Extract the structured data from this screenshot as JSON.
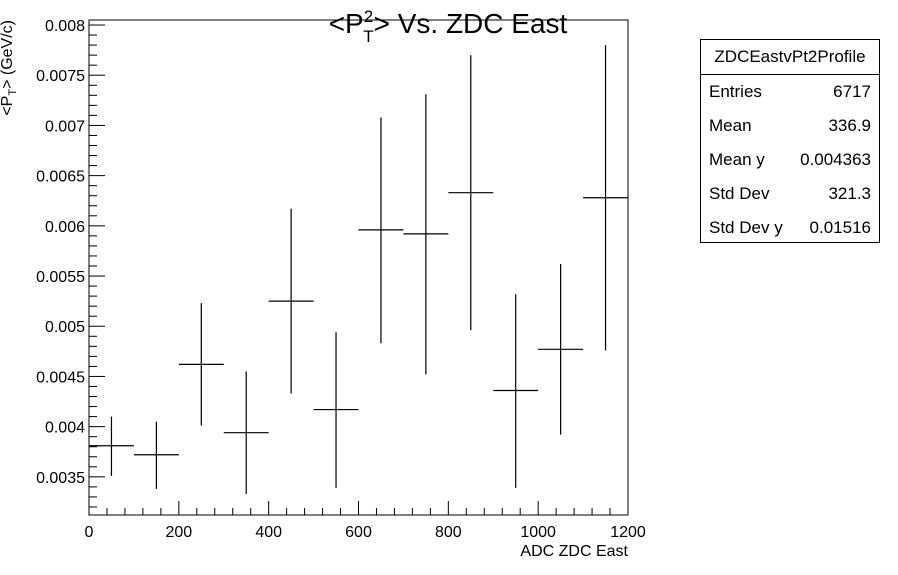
{
  "chart_data": {
    "type": "scatter",
    "title": "<P_T^2> Vs. ZDC East",
    "title_parts": {
      "lhs": "<P",
      "sup": "2",
      "sub": "T",
      "rhs": "> Vs. ZDC East"
    },
    "xlabel": "ADC ZDC East",
    "ylabel": "<P_T^2> (GeV/c)^2",
    "ylabel_parts": {
      "lhs": "<P",
      "sub": "T",
      "rhs": "> (GeV/c)"
    },
    "xlim": [
      0,
      1200
    ],
    "ylim": [
      0.00312,
      0.00805
    ],
    "x_ticks": [
      0,
      200,
      400,
      600,
      800,
      1000,
      1200
    ],
    "x_tick_labels": [
      "0",
      "200",
      "400",
      "600",
      "800",
      "1000",
      "1200"
    ],
    "y_ticks": [
      0.0035,
      0.004,
      0.0045,
      0.005,
      0.0055,
      0.006,
      0.0065,
      0.007,
      0.0075,
      0.008
    ],
    "y_tick_labels": [
      "0.0035",
      "0.004",
      "0.0045",
      "0.005",
      "0.0055",
      "0.006",
      "0.0065",
      "0.007",
      "0.0075",
      "0.008"
    ],
    "grid": false,
    "legend": "none",
    "series": [
      {
        "bin_half_width": 50,
        "points": [
          {
            "x": 50,
            "y": 0.00381,
            "ylo": 0.00351,
            "yhi": 0.0041
          },
          {
            "x": 150,
            "y": 0.00372,
            "ylo": 0.00338,
            "yhi": 0.00405
          },
          {
            "x": 250,
            "y": 0.00462,
            "ylo": 0.00401,
            "yhi": 0.00523
          },
          {
            "x": 350,
            "y": 0.00394,
            "ylo": 0.00333,
            "yhi": 0.00455
          },
          {
            "x": 450,
            "y": 0.00525,
            "ylo": 0.00433,
            "yhi": 0.00617
          },
          {
            "x": 550,
            "y": 0.00417,
            "ylo": 0.00339,
            "yhi": 0.00494
          },
          {
            "x": 650,
            "y": 0.00596,
            "ylo": 0.00483,
            "yhi": 0.00708
          },
          {
            "x": 750,
            "y": 0.00592,
            "ylo": 0.00452,
            "yhi": 0.00731
          },
          {
            "x": 850,
            "y": 0.00633,
            "ylo": 0.00496,
            "yhi": 0.0077
          },
          {
            "x": 950,
            "y": 0.00436,
            "ylo": 0.00339,
            "yhi": 0.00532
          },
          {
            "x": 1050,
            "y": 0.00477,
            "ylo": 0.00392,
            "yhi": 0.00562
          },
          {
            "x": 1150,
            "y": 0.00628,
            "ylo": 0.00476,
            "yhi": 0.0078
          }
        ]
      }
    ],
    "stats_box": {
      "title": "ZDCEastvPt2Profile",
      "rows": [
        {
          "label": "Entries",
          "value": "6717"
        },
        {
          "label": "Mean",
          "value": "336.9"
        },
        {
          "label": "Mean y",
          "value": "0.004363"
        },
        {
          "label": "Std Dev",
          "value": "321.3"
        },
        {
          "label": "Std Dev y",
          "value": "0.01516"
        }
      ]
    }
  }
}
